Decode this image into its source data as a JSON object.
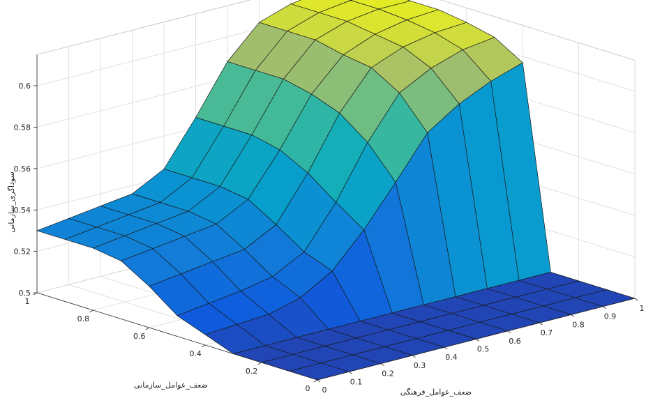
{
  "chart_data": {
    "type": "surface",
    "title": "",
    "xlabel": "ضعف_عوامل_فرهنگی",
    "ylabel": "ضعف_عوامل_سازمانی",
    "zlabel": "سوداگری_سازمانی",
    "xlim": [
      0,
      1
    ],
    "ylim": [
      0,
      1
    ],
    "zlim": [
      0.5,
      0.6
    ],
    "x_ticks": [
      0,
      0.1,
      0.2,
      0.3,
      0.4,
      0.5,
      0.6,
      0.7,
      0.8,
      0.9,
      1
    ],
    "y_ticks": [
      0,
      0.2,
      0.4,
      0.6,
      0.8,
      1
    ],
    "z_ticks": [
      0.5,
      0.52,
      0.54,
      0.56,
      0.58,
      0.6
    ],
    "x_tick_labels": [
      "0",
      "0.1",
      "0.2",
      "0.3",
      "0.4",
      "0.5",
      "0.6",
      "0.7",
      "0.8",
      "0.9",
      "1"
    ],
    "y_tick_labels": [
      "0",
      "0.2",
      "0.4",
      "0.6",
      "0.8",
      "1"
    ],
    "z_tick_labels": [
      "0.5",
      "0.52",
      "0.54",
      "0.56",
      "0.58",
      "0.6"
    ],
    "grid": true,
    "colormap": "parula",
    "x": [
      0,
      0.1,
      0.2,
      0.3,
      0.4,
      0.5,
      0.6,
      0.7,
      0.8,
      0.9,
      1
    ],
    "y": [
      0,
      0.1,
      0.2,
      0.3,
      0.4,
      0.5,
      0.6,
      0.7,
      0.8,
      0.9,
      1
    ],
    "z": [
      [
        0.5,
        0.5,
        0.5,
        0.5,
        0.5,
        0.5,
        0.5,
        0.5,
        0.5,
        0.5,
        0.5
      ],
      [
        0.5,
        0.5,
        0.5,
        0.5,
        0.5,
        0.5,
        0.5,
        0.5,
        0.5,
        0.5,
        0.5
      ],
      [
        0.5,
        0.5,
        0.5,
        0.5,
        0.5,
        0.5,
        0.5,
        0.5,
        0.5,
        0.5,
        0.5
      ],
      [
        0.5,
        0.5,
        0.5,
        0.5,
        0.5,
        0.5,
        0.5,
        0.5,
        0.5,
        0.5,
        0.5
      ],
      [
        0.505,
        0.506,
        0.507,
        0.511,
        0.52,
        0.536,
        0.555,
        0.575,
        0.585,
        0.592,
        0.597
      ],
      [
        0.51,
        0.512,
        0.514,
        0.517,
        0.525,
        0.545,
        0.57,
        0.59,
        0.598,
        0.603,
        0.605
      ],
      [
        0.52,
        0.522,
        0.524,
        0.526,
        0.534,
        0.555,
        0.58,
        0.598,
        0.604,
        0.607,
        0.608
      ],
      [
        0.528,
        0.53,
        0.532,
        0.534,
        0.542,
        0.562,
        0.585,
        0.6,
        0.606,
        0.609,
        0.61
      ],
      [
        0.53,
        0.532,
        0.534,
        0.536,
        0.544,
        0.565,
        0.588,
        0.603,
        0.608,
        0.61,
        0.61
      ],
      [
        0.53,
        0.532,
        0.534,
        0.536,
        0.544,
        0.565,
        0.588,
        0.603,
        0.608,
        0.61,
        0.61
      ],
      [
        0.53,
        0.532,
        0.534,
        0.536,
        0.544,
        0.565,
        0.588,
        0.603,
        0.608,
        0.61,
        0.61
      ]
    ]
  }
}
